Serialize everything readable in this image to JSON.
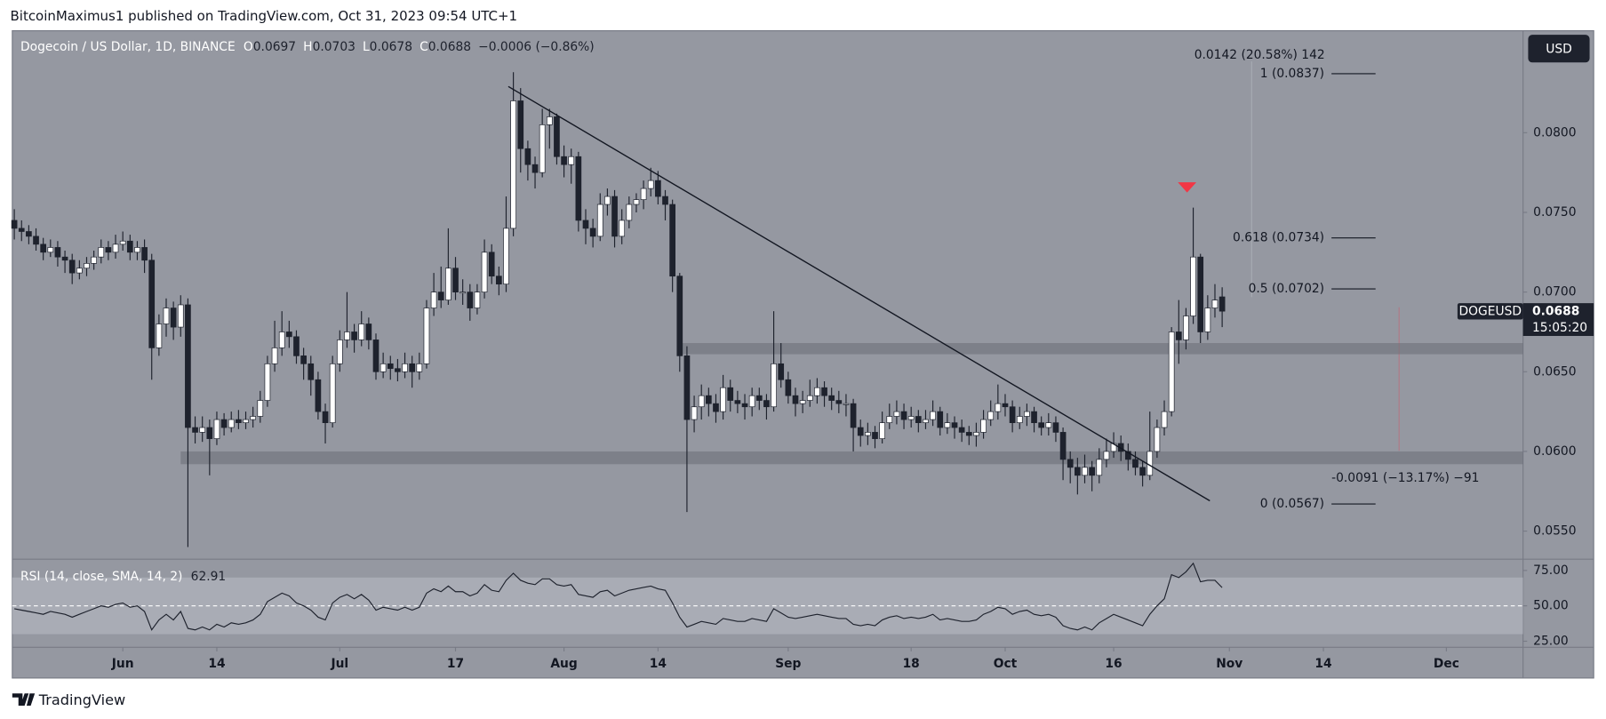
{
  "header": "BitcoinMaximus1 published on TradingView.com, Oct 31, 2023 09:54 UTC+1",
  "footer": "TradingView",
  "chart_data": {
    "type": "candlestick",
    "title": "Dogecoin / US Dollar, 1D, BINANCE",
    "legend": [
      {
        "label": "O",
        "value": 0.0697
      },
      {
        "label": "H",
        "value": 0.0703
      },
      {
        "label": "L",
        "value": 0.0678
      },
      {
        "label": "C",
        "value": 0.0688
      }
    ],
    "change": "−0.0006 (−0.86%)",
    "currency": "USD",
    "symbol": "DOGEUSD",
    "last_price": 0.0688,
    "countdown": "15:05:20",
    "up_color": "#ffffff",
    "down_color": "#1e222d",
    "background": "#9598a1",
    "xlim": [
      -0.28,
      208.6
    ],
    "ylim": [
      0.0533,
      0.0864
    ],
    "xticks": [
      {
        "value": 15,
        "label": "Jun"
      },
      {
        "value": 28,
        "label": "14"
      },
      {
        "value": 45,
        "label": "Jul"
      },
      {
        "value": 61,
        "label": "17"
      },
      {
        "value": 76,
        "label": "Aug"
      },
      {
        "value": 89,
        "label": "14"
      },
      {
        "value": 107,
        "label": "Sep"
      },
      {
        "value": 124,
        "label": "18"
      },
      {
        "value": 137,
        "label": "Oct"
      },
      {
        "value": 152,
        "label": "16"
      },
      {
        "value": 168,
        "label": "Nov"
      },
      {
        "value": 181,
        "label": "14"
      },
      {
        "value": 198,
        "label": "Dec"
      }
    ],
    "yticks": [
      {
        "value": 0.055,
        "label": "0.0550"
      },
      {
        "value": 0.06,
        "label": "0.0600"
      },
      {
        "value": 0.065,
        "label": "0.0650"
      },
      {
        "value": 0.07,
        "label": "0.0700"
      },
      {
        "value": 0.075,
        "label": "0.0750"
      },
      {
        "value": 0.08,
        "label": "0.0800"
      }
    ],
    "candles": [
      [
        0.0745,
        0.0752,
        0.0733,
        0.074
      ],
      [
        0.074,
        0.0745,
        0.0732,
        0.0738
      ],
      [
        0.0738,
        0.0742,
        0.073,
        0.0735
      ],
      [
        0.0735,
        0.074,
        0.0726,
        0.073
      ],
      [
        0.073,
        0.0734,
        0.072,
        0.0725
      ],
      [
        0.0725,
        0.0733,
        0.0722,
        0.0728
      ],
      [
        0.0728,
        0.0732,
        0.0716,
        0.0722
      ],
      [
        0.0722,
        0.0726,
        0.0712,
        0.072
      ],
      [
        0.072,
        0.0724,
        0.0705,
        0.0712
      ],
      [
        0.0712,
        0.072,
        0.0708,
        0.0715
      ],
      [
        0.0715,
        0.0722,
        0.071,
        0.0718
      ],
      [
        0.0718,
        0.0726,
        0.0714,
        0.0722
      ],
      [
        0.0722,
        0.0733,
        0.0718,
        0.0728
      ],
      [
        0.0728,
        0.0732,
        0.072,
        0.0725
      ],
      [
        0.0725,
        0.0736,
        0.0721,
        0.073
      ],
      [
        0.073,
        0.0738,
        0.0726,
        0.0732
      ],
      [
        0.0732,
        0.0736,
        0.072,
        0.0725
      ],
      [
        0.0725,
        0.0732,
        0.072,
        0.0728
      ],
      [
        0.0728,
        0.0733,
        0.0712,
        0.072
      ],
      [
        0.072,
        0.0724,
        0.0645,
        0.0665
      ],
      [
        0.0665,
        0.0686,
        0.066,
        0.068
      ],
      [
        0.068,
        0.0696,
        0.0672,
        0.069
      ],
      [
        0.069,
        0.0694,
        0.067,
        0.0678
      ],
      [
        0.0678,
        0.0698,
        0.0672,
        0.0692
      ],
      [
        0.0692,
        0.0696,
        0.054,
        0.0615
      ],
      [
        0.0615,
        0.0622,
        0.0605,
        0.0612
      ],
      [
        0.0612,
        0.0622,
        0.0606,
        0.0615
      ],
      [
        0.0615,
        0.062,
        0.0585,
        0.0608
      ],
      [
        0.0608,
        0.0625,
        0.0604,
        0.062
      ],
      [
        0.062,
        0.0624,
        0.061,
        0.0615
      ],
      [
        0.0615,
        0.0625,
        0.0612,
        0.062
      ],
      [
        0.062,
        0.0626,
        0.0614,
        0.0618
      ],
      [
        0.0618,
        0.0625,
        0.0614,
        0.062
      ],
      [
        0.062,
        0.0628,
        0.0615,
        0.0622
      ],
      [
        0.0622,
        0.0638,
        0.0618,
        0.0632
      ],
      [
        0.0632,
        0.066,
        0.0628,
        0.0655
      ],
      [
        0.0655,
        0.0682,
        0.065,
        0.0665
      ],
      [
        0.0665,
        0.0688,
        0.066,
        0.0675
      ],
      [
        0.0675,
        0.0682,
        0.0665,
        0.0672
      ],
      [
        0.0672,
        0.0676,
        0.0655,
        0.066
      ],
      [
        0.066,
        0.0665,
        0.0645,
        0.0655
      ],
      [
        0.0655,
        0.066,
        0.0635,
        0.0645
      ],
      [
        0.0645,
        0.065,
        0.062,
        0.0625
      ],
      [
        0.0625,
        0.063,
        0.0605,
        0.0618
      ],
      [
        0.0618,
        0.066,
        0.0615,
        0.0655
      ],
      [
        0.0655,
        0.0676,
        0.065,
        0.067
      ],
      [
        0.067,
        0.07,
        0.0665,
        0.0675
      ],
      [
        0.0675,
        0.068,
        0.0662,
        0.067
      ],
      [
        0.067,
        0.0688,
        0.0666,
        0.068
      ],
      [
        0.068,
        0.0684,
        0.0664,
        0.067
      ],
      [
        0.067,
        0.0674,
        0.0645,
        0.065
      ],
      [
        0.065,
        0.0662,
        0.0646,
        0.0655
      ],
      [
        0.0655,
        0.066,
        0.0645,
        0.0652
      ],
      [
        0.0652,
        0.0658,
        0.0644,
        0.065
      ],
      [
        0.065,
        0.0662,
        0.0646,
        0.0655
      ],
      [
        0.0655,
        0.066,
        0.064,
        0.065
      ],
      [
        0.065,
        0.0662,
        0.0645,
        0.0655
      ],
      [
        0.0655,
        0.0695,
        0.0652,
        0.069
      ],
      [
        0.069,
        0.0712,
        0.0685,
        0.07
      ],
      [
        0.07,
        0.0716,
        0.069,
        0.0695
      ],
      [
        0.0695,
        0.074,
        0.0692,
        0.0715
      ],
      [
        0.0715,
        0.0722,
        0.0695,
        0.07
      ],
      [
        0.07,
        0.0708,
        0.0692,
        0.07
      ],
      [
        0.07,
        0.0705,
        0.0682,
        0.069
      ],
      [
        0.069,
        0.0705,
        0.0686,
        0.07
      ],
      [
        0.07,
        0.0733,
        0.0696,
        0.0725
      ],
      [
        0.0725,
        0.073,
        0.0705,
        0.071
      ],
      [
        0.071,
        0.0716,
        0.0698,
        0.0705
      ],
      [
        0.0705,
        0.076,
        0.07,
        0.074
      ],
      [
        0.074,
        0.0838,
        0.0735,
        0.082
      ],
      [
        0.082,
        0.0828,
        0.0775,
        0.079
      ],
      [
        0.079,
        0.0795,
        0.077,
        0.078
      ],
      [
        0.078,
        0.0785,
        0.0765,
        0.0775
      ],
      [
        0.0775,
        0.0815,
        0.0772,
        0.0805
      ],
      [
        0.0805,
        0.0815,
        0.079,
        0.081
      ],
      [
        0.081,
        0.0812,
        0.078,
        0.0785
      ],
      [
        0.0785,
        0.0792,
        0.0772,
        0.078
      ],
      [
        0.078,
        0.079,
        0.0768,
        0.0785
      ],
      [
        0.0785,
        0.0788,
        0.0738,
        0.0745
      ],
      [
        0.0745,
        0.0752,
        0.073,
        0.074
      ],
      [
        0.074,
        0.0746,
        0.0728,
        0.0735
      ],
      [
        0.0735,
        0.0762,
        0.0732,
        0.0755
      ],
      [
        0.0755,
        0.0765,
        0.0748,
        0.076
      ],
      [
        0.076,
        0.0764,
        0.0728,
        0.0735
      ],
      [
        0.0735,
        0.0752,
        0.073,
        0.0745
      ],
      [
        0.0745,
        0.076,
        0.074,
        0.0755
      ],
      [
        0.0755,
        0.0762,
        0.075,
        0.0758
      ],
      [
        0.0758,
        0.077,
        0.0752,
        0.0765
      ],
      [
        0.0765,
        0.0778,
        0.076,
        0.077
      ],
      [
        0.077,
        0.0776,
        0.0755,
        0.076
      ],
      [
        0.076,
        0.0764,
        0.0745,
        0.0755
      ],
      [
        0.0755,
        0.0758,
        0.07,
        0.071
      ],
      [
        0.071,
        0.0712,
        0.065,
        0.066
      ],
      [
        0.066,
        0.0666,
        0.0562,
        0.062
      ],
      [
        0.062,
        0.0635,
        0.0612,
        0.0628
      ],
      [
        0.0628,
        0.0642,
        0.062,
        0.0635
      ],
      [
        0.0635,
        0.064,
        0.0622,
        0.063
      ],
      [
        0.063,
        0.0636,
        0.0618,
        0.0625
      ],
      [
        0.0625,
        0.0648,
        0.062,
        0.064
      ],
      [
        0.064,
        0.0645,
        0.0625,
        0.0632
      ],
      [
        0.0632,
        0.0638,
        0.0624,
        0.063
      ],
      [
        0.063,
        0.0636,
        0.062,
        0.0628
      ],
      [
        0.0628,
        0.064,
        0.0622,
        0.0635
      ],
      [
        0.0635,
        0.064,
        0.0626,
        0.0632
      ],
      [
        0.0632,
        0.0636,
        0.062,
        0.0628
      ],
      [
        0.0628,
        0.0688,
        0.0625,
        0.0655
      ],
      [
        0.0655,
        0.0668,
        0.064,
        0.0645
      ],
      [
        0.0645,
        0.065,
        0.063,
        0.0635
      ],
      [
        0.0635,
        0.064,
        0.0622,
        0.063
      ],
      [
        0.063,
        0.0638,
        0.0624,
        0.0632
      ],
      [
        0.0632,
        0.0645,
        0.0628,
        0.0635
      ],
      [
        0.0635,
        0.0646,
        0.063,
        0.064
      ],
      [
        0.064,
        0.0644,
        0.0628,
        0.0635
      ],
      [
        0.0635,
        0.064,
        0.0626,
        0.0632
      ],
      [
        0.0632,
        0.0638,
        0.0624,
        0.063
      ],
      [
        0.063,
        0.0636,
        0.0622,
        0.063
      ],
      [
        0.063,
        0.0633,
        0.06,
        0.0615
      ],
      [
        0.0615,
        0.062,
        0.0603,
        0.061
      ],
      [
        0.061,
        0.0618,
        0.0604,
        0.0612
      ],
      [
        0.0612,
        0.0616,
        0.0602,
        0.0608
      ],
      [
        0.0608,
        0.0625,
        0.0605,
        0.0618
      ],
      [
        0.0618,
        0.063,
        0.0614,
        0.0622
      ],
      [
        0.0622,
        0.0632,
        0.0617,
        0.0625
      ],
      [
        0.0625,
        0.063,
        0.0614,
        0.062
      ],
      [
        0.062,
        0.0628,
        0.0615,
        0.0622
      ],
      [
        0.0622,
        0.0626,
        0.0612,
        0.0618
      ],
      [
        0.0618,
        0.0626,
        0.0614,
        0.062
      ],
      [
        0.062,
        0.0632,
        0.0616,
        0.0625
      ],
      [
        0.0625,
        0.0628,
        0.061,
        0.0615
      ],
      [
        0.0615,
        0.0624,
        0.0611,
        0.0618
      ],
      [
        0.0618,
        0.0622,
        0.0608,
        0.0615
      ],
      [
        0.0615,
        0.062,
        0.0606,
        0.0612
      ],
      [
        0.0612,
        0.0616,
        0.0604,
        0.061
      ],
      [
        0.061,
        0.0618,
        0.0603,
        0.0612
      ],
      [
        0.0612,
        0.0626,
        0.0608,
        0.062
      ],
      [
        0.062,
        0.0632,
        0.0616,
        0.0625
      ],
      [
        0.0625,
        0.0642,
        0.062,
        0.063
      ],
      [
        0.063,
        0.0636,
        0.0622,
        0.0628
      ],
      [
        0.0628,
        0.0632,
        0.0612,
        0.0618
      ],
      [
        0.0618,
        0.0628,
        0.0614,
        0.0622
      ],
      [
        0.0622,
        0.063,
        0.0616,
        0.0625
      ],
      [
        0.0625,
        0.0628,
        0.0612,
        0.0618
      ],
      [
        0.0618,
        0.0622,
        0.061,
        0.0615
      ],
      [
        0.0615,
        0.0624,
        0.061,
        0.0618
      ],
      [
        0.0618,
        0.0622,
        0.0606,
        0.0612
      ],
      [
        0.0612,
        0.0615,
        0.0582,
        0.0595
      ],
      [
        0.0595,
        0.06,
        0.058,
        0.059
      ],
      [
        0.059,
        0.0596,
        0.0573,
        0.0585
      ],
      [
        0.0585,
        0.0598,
        0.058,
        0.059
      ],
      [
        0.059,
        0.0594,
        0.0575,
        0.0585
      ],
      [
        0.0585,
        0.0602,
        0.058,
        0.0595
      ],
      [
        0.0595,
        0.0608,
        0.059,
        0.06
      ],
      [
        0.06,
        0.0612,
        0.0596,
        0.0605
      ],
      [
        0.0605,
        0.061,
        0.0594,
        0.06
      ],
      [
        0.06,
        0.0605,
        0.0588,
        0.0595
      ],
      [
        0.0595,
        0.06,
        0.0585,
        0.059
      ],
      [
        0.059,
        0.0594,
        0.0578,
        0.0585
      ],
      [
        0.0585,
        0.0625,
        0.0582,
        0.06
      ],
      [
        0.06,
        0.062,
        0.0596,
        0.0615
      ],
      [
        0.0615,
        0.0632,
        0.061,
        0.0625
      ],
      [
        0.0625,
        0.0678,
        0.0622,
        0.0675
      ],
      [
        0.0675,
        0.0695,
        0.0655,
        0.067
      ],
      [
        0.067,
        0.069,
        0.0664,
        0.0685
      ],
      [
        0.0685,
        0.0753,
        0.068,
        0.0722
      ],
      [
        0.0722,
        0.0724,
        0.0668,
        0.0675
      ],
      [
        0.0675,
        0.0698,
        0.067,
        0.069
      ],
      [
        0.069,
        0.0705,
        0.0684,
        0.0695
      ],
      [
        0.0697,
        0.0703,
        0.0678,
        0.0688
      ]
    ],
    "zones": [
      {
        "low": 0.0592,
        "high": 0.06,
        "from": 23
      },
      {
        "low": 0.0661,
        "high": 0.0668,
        "from": 92.3
      }
    ],
    "trendline": {
      "from": [
        68.3,
        0.0829
      ],
      "to": [
        165.3,
        0.0569
      ]
    },
    "fib_levels": [
      {
        "label": "1 (0.0837)",
        "value": 0.0837
      },
      {
        "label": "0.618 (0.0734)",
        "value": 0.0734
      },
      {
        "label": "0.5 (0.0702)",
        "value": 0.0702
      },
      {
        "label": "0 (0.0567)",
        "value": 0.0567
      }
    ],
    "measurements": [
      "0.0142 (20.58%) 142",
      "-0.0091 (−13.17%) −91"
    ],
    "rsi": {
      "label": "RSI (14, close, SMA, 14, 2)",
      "last": 62.91,
      "color": "#1e222d",
      "ylim": [
        20.7,
        82.2
      ],
      "yticks": [
        {
          "value": 25,
          "label": "25.00"
        },
        {
          "value": 50,
          "label": "50.00"
        },
        {
          "value": 75,
          "label": "75.00"
        }
      ],
      "band": [
        30,
        70
      ],
      "values": [
        48,
        47,
        46,
        45,
        44,
        46,
        45,
        44,
        42,
        44,
        46,
        48,
        50,
        49,
        51,
        52,
        49,
        50,
        46,
        33,
        40,
        44,
        40,
        46,
        34,
        33,
        35,
        33,
        37,
        35,
        38,
        37,
        38,
        40,
        44,
        53,
        56,
        59,
        57,
        52,
        50,
        47,
        42,
        40,
        52,
        56,
        58,
        55,
        58,
        54,
        47,
        49,
        48,
        47,
        49,
        47,
        49,
        59,
        62,
        60,
        64,
        60,
        60,
        57,
        59,
        65,
        61,
        60,
        68,
        73,
        68,
        66,
        65,
        69,
        69,
        65,
        64,
        65,
        58,
        57,
        56,
        60,
        61,
        57,
        59,
        61,
        62,
        63,
        64,
        62,
        61,
        52,
        42,
        35,
        37,
        39,
        38,
        37,
        41,
        40,
        39,
        39,
        41,
        40,
        39,
        48,
        45,
        42,
        41,
        42,
        43,
        44,
        43,
        42,
        41,
        41,
        37,
        36,
        37,
        36,
        40,
        42,
        43,
        41,
        42,
        41,
        42,
        44,
        40,
        41,
        40,
        39,
        39,
        40,
        44,
        46,
        49,
        48,
        44,
        46,
        47,
        44,
        43,
        44,
        42,
        36,
        34,
        33,
        35,
        33,
        38,
        41,
        44,
        42,
        40,
        38,
        36,
        44,
        50,
        55,
        72,
        70,
        74,
        80,
        67,
        68,
        68,
        62.91
      ]
    }
  }
}
